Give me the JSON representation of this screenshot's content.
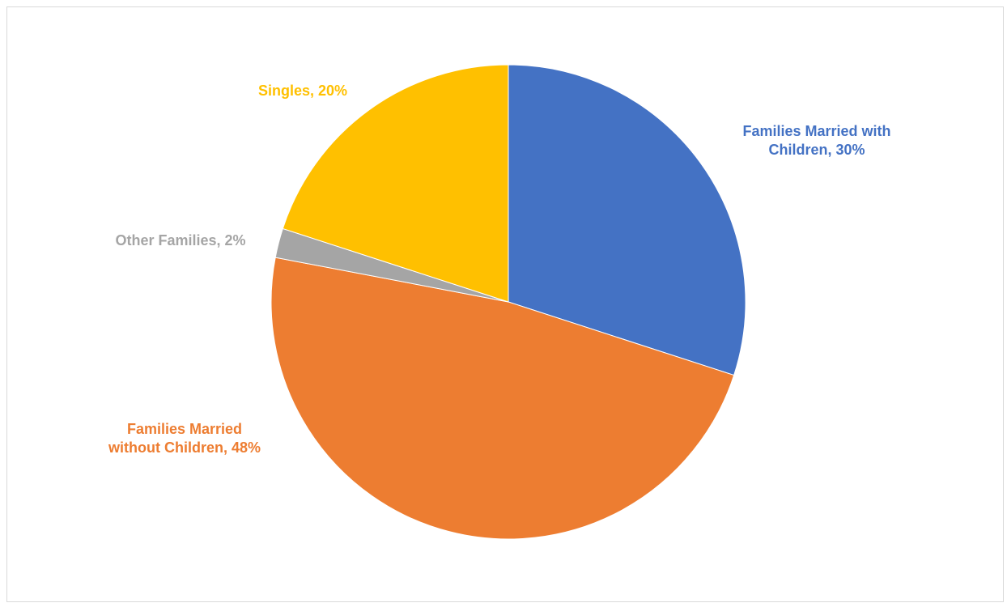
{
  "chart_data": {
    "type": "pie",
    "start_angle_deg": 0,
    "direction": "clockwise",
    "legend": "none",
    "slices": [
      {
        "label": "Families Married with Children",
        "display_label": "Families Married with\nChildren, 30%",
        "value": 30,
        "color": "#4472c4"
      },
      {
        "label": "Families Married without Children",
        "display_label": "Families Married\nwithout Children, 48%",
        "value": 48,
        "color": "#ed7d31"
      },
      {
        "label": "Other Families",
        "display_label": "Other Families, 2%",
        "value": 2,
        "color": "#a5a5a5"
      },
      {
        "label": "Singles",
        "display_label": "Singles, 20%",
        "value": 20,
        "color": "#ffc000"
      }
    ]
  }
}
